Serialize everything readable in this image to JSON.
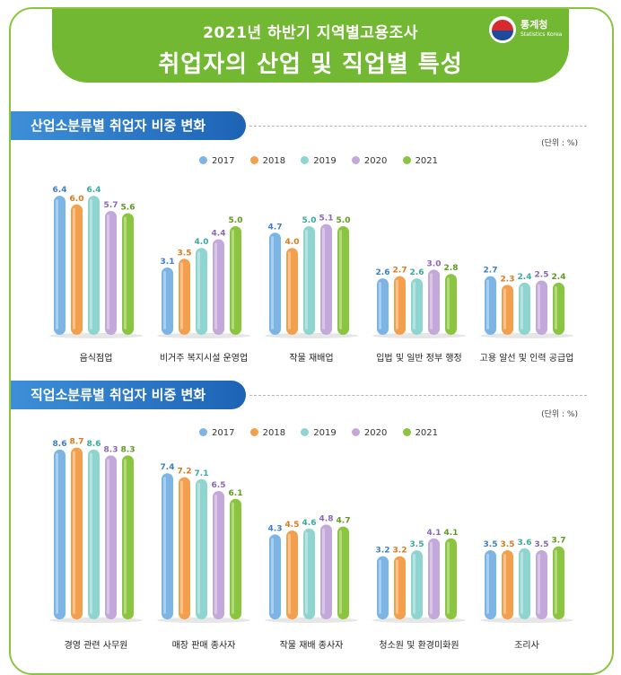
{
  "header": {
    "title_line1": "2021년 하반기 지역별고용조사",
    "title_line2": "취업자의 산업 및 직업별 특성",
    "logo_name": "통계청",
    "logo_sub": "Statistics Korea"
  },
  "colors": {
    "2017": "#7cb4e6",
    "2018": "#f2a04e",
    "2019": "#8fd5cf",
    "2020": "#c3a8da",
    "2021": "#8bc53f",
    "banner": "#73b832",
    "section_tab": "#1d63b5"
  },
  "sections": [
    {
      "title": "산업소분류별 취업자 비중 변화",
      "unit": "(단위 : %)",
      "legend": [
        "2017",
        "2018",
        "2019",
        "2020",
        "2021"
      ]
    },
    {
      "title": "직업소분류별 취업자 비중 변화",
      "unit": "(단위 : %)",
      "legend": [
        "2017",
        "2018",
        "2019",
        "2020",
        "2021"
      ]
    }
  ],
  "chart_data": [
    {
      "type": "bar",
      "title": "산업소분류별 취업자 비중 변화",
      "unit": "%",
      "categories": [
        "음식점업",
        "비거주 복지시설 운영업",
        "작물 재배업",
        "입법 및 일반 정부 행정",
        "고용 알선 및 인력 공급업"
      ],
      "series": [
        {
          "name": "2017",
          "values": [
            6.4,
            3.1,
            4.7,
            2.6,
            2.7
          ]
        },
        {
          "name": "2018",
          "values": [
            6.0,
            3.5,
            4.0,
            2.7,
            2.3
          ]
        },
        {
          "name": "2019",
          "values": [
            6.4,
            4.0,
            5.0,
            2.6,
            2.4
          ]
        },
        {
          "name": "2020",
          "values": [
            5.7,
            4.4,
            5.1,
            3.0,
            2.5
          ]
        },
        {
          "name": "2021",
          "values": [
            5.6,
            5.0,
            5.0,
            2.8,
            2.4
          ]
        }
      ],
      "value_labels": [
        [
          "6.4",
          "3.1",
          "4.7",
          "2.6",
          "2.7"
        ],
        [
          "6.0",
          "3.5",
          "4.0",
          "2.7",
          "2.3"
        ],
        [
          "6.4",
          "4.0",
          "5.0",
          "2.6",
          "2.4"
        ],
        [
          "5.7",
          "4.4",
          "5.1",
          "3.0",
          "2.5"
        ],
        [
          "5.6",
          "5.0",
          "5.0",
          "2.8",
          "2.4"
        ]
      ],
      "grid": false,
      "legend_position": "top"
    },
    {
      "type": "bar",
      "title": "직업소분류별 취업자 비중 변화",
      "unit": "%",
      "categories": [
        "경영 관련 사무원",
        "매장 판매 종사자",
        "작물 재배 종사자",
        "청소원 및 환경미화원",
        "조리사"
      ],
      "series": [
        {
          "name": "2017",
          "values": [
            8.6,
            7.4,
            4.3,
            3.2,
            3.5
          ]
        },
        {
          "name": "2018",
          "values": [
            8.7,
            7.2,
            4.5,
            3.2,
            3.5
          ]
        },
        {
          "name": "2019",
          "values": [
            8.6,
            7.1,
            4.6,
            3.5,
            3.6
          ]
        },
        {
          "name": "2020",
          "values": [
            8.3,
            6.5,
            4.8,
            4.1,
            3.5
          ]
        },
        {
          "name": "2021",
          "values": [
            8.3,
            6.1,
            4.7,
            4.1,
            3.7
          ]
        }
      ],
      "value_labels": [
        [
          "8.6",
          "7.4",
          "4.3",
          "3.2",
          "3.5"
        ],
        [
          "8.7",
          "7.2",
          "4.5",
          "3.2",
          "3.5"
        ],
        [
          "8.6",
          "7.1",
          "4.6",
          "3.5",
          "3.6"
        ],
        [
          "8.3",
          "6.5",
          "4.8",
          "4.1",
          "3.5"
        ],
        [
          "8.3",
          "6.1",
          "4.7",
          "4.1",
          "3.7"
        ]
      ],
      "grid": false,
      "legend_position": "top"
    }
  ]
}
